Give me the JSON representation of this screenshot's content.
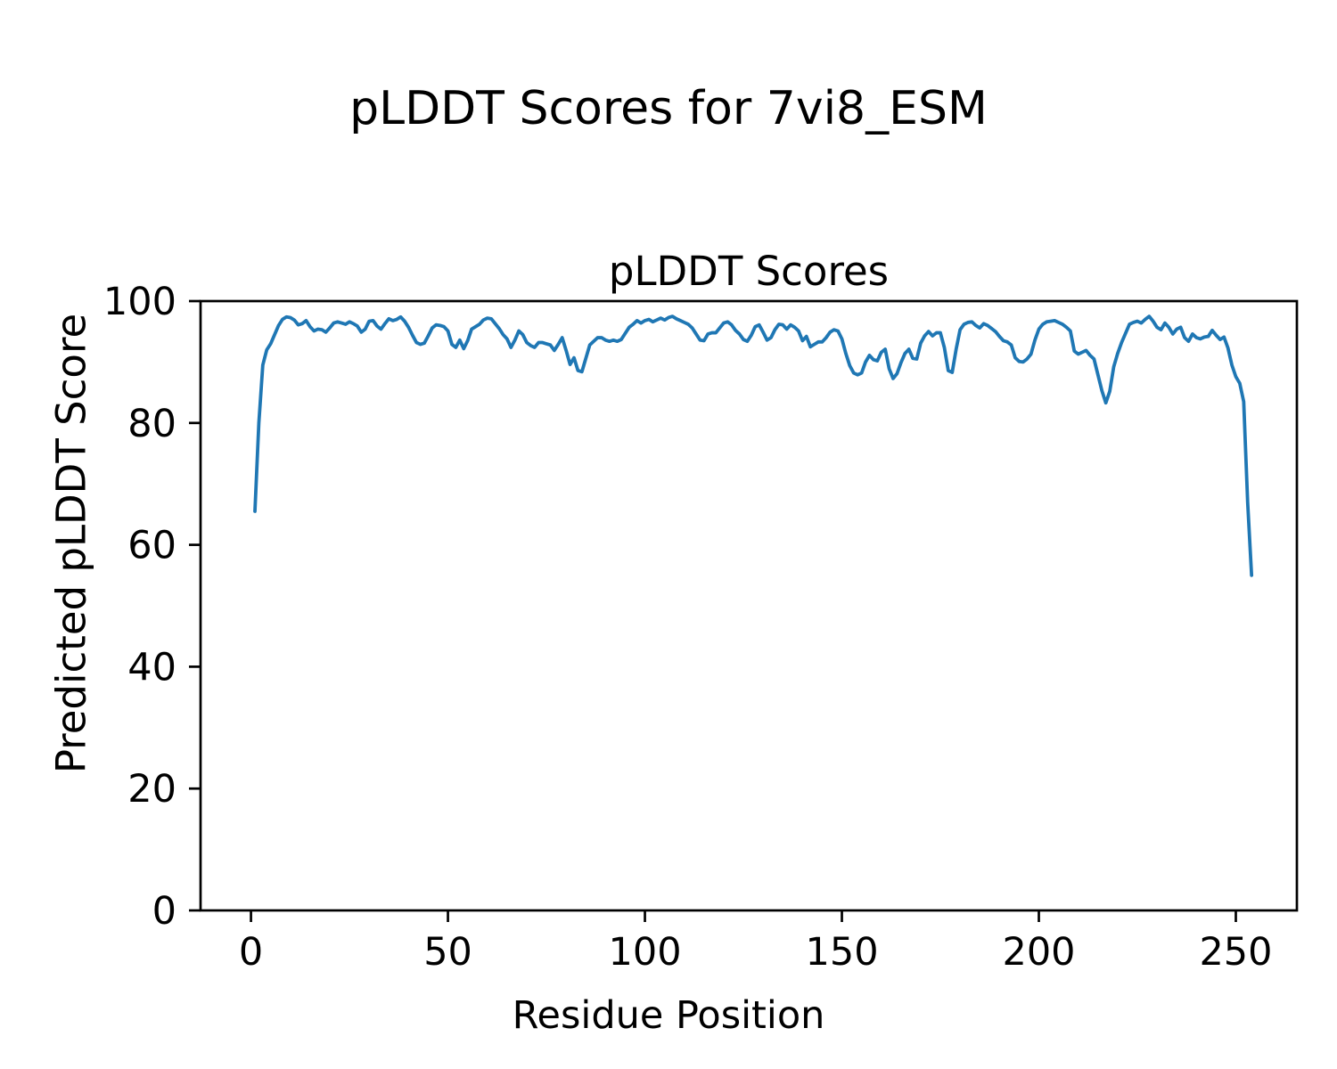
{
  "chart_data": {
    "type": "line",
    "suptitle": "pLDDT Scores for 7vi8_ESM",
    "title": "pLDDT Scores",
    "xlabel": "Residue Position",
    "ylabel": "Predicted pLDDT Score",
    "xlim": [
      -12.8,
      265.5
    ],
    "ylim": [
      0,
      100
    ],
    "xticks": [
      0,
      50,
      100,
      150,
      200,
      250
    ],
    "yticks": [
      0,
      20,
      40,
      60,
      80,
      100
    ],
    "grid": false,
    "legend": "none",
    "line_color": "#1f77b4",
    "series": [
      {
        "name": "pLDDT",
        "color": "#1f77b4",
        "x_start": 1,
        "x_step": 1,
        "values": [
          65.5,
          80.0,
          89.5,
          92.0,
          93.0,
          94.5,
          96.0,
          97.0,
          97.4,
          97.3,
          96.9,
          96.1,
          96.3,
          96.8,
          95.8,
          95.1,
          95.4,
          95.3,
          94.9,
          95.6,
          96.4,
          96.6,
          96.4,
          96.2,
          96.6,
          96.3,
          95.9,
          94.9,
          95.4,
          96.7,
          96.8,
          95.9,
          95.4,
          96.3,
          97.1,
          96.8,
          97.0,
          97.4,
          96.7,
          95.7,
          94.4,
          93.2,
          92.9,
          93.1,
          94.3,
          95.6,
          96.1,
          96.0,
          95.8,
          95.1,
          92.9,
          92.4,
          93.6,
          92.2,
          93.5,
          95.4,
          95.8,
          96.2,
          96.9,
          97.2,
          97.1,
          96.3,
          95.5,
          94.5,
          93.8,
          92.4,
          93.6,
          95.1,
          94.5,
          93.2,
          92.7,
          92.4,
          93.2,
          93.2,
          93.0,
          92.8,
          91.9,
          92.9,
          94.0,
          91.9,
          89.6,
          90.7,
          88.6,
          88.4,
          90.6,
          92.8,
          93.4,
          94.0,
          94.0,
          93.6,
          93.4,
          93.6,
          93.4,
          93.7,
          94.7,
          95.7,
          96.2,
          96.8,
          96.4,
          96.8,
          97.0,
          96.6,
          96.9,
          97.2,
          96.9,
          97.3,
          97.5,
          97.1,
          96.8,
          96.5,
          96.2,
          95.6,
          94.6,
          93.6,
          93.5,
          94.6,
          94.8,
          94.8,
          95.6,
          96.4,
          96.6,
          96.1,
          95.2,
          94.6,
          93.7,
          93.4,
          94.4,
          95.8,
          96.1,
          94.9,
          93.6,
          94.0,
          95.3,
          96.2,
          96.1,
          95.4,
          96.1,
          95.7,
          95.1,
          93.5,
          94.2,
          92.5,
          92.9,
          93.3,
          93.3,
          94.0,
          94.9,
          95.3,
          95.1,
          93.8,
          91.4,
          89.4,
          88.2,
          87.9,
          88.2,
          90.0,
          91.1,
          90.4,
          90.2,
          91.6,
          92.1,
          88.9,
          87.3,
          88.1,
          89.9,
          91.4,
          92.1,
          90.6,
          90.5,
          93.1,
          94.3,
          95.0,
          94.3,
          94.8,
          94.8,
          92.4,
          88.6,
          88.3,
          92.1,
          95.3,
          96.2,
          96.5,
          96.6,
          96.0,
          95.6,
          96.3,
          96.0,
          95.5,
          95.0,
          94.2,
          93.5,
          93.3,
          92.8,
          90.7,
          90.1,
          90.0,
          90.5,
          91.3,
          93.6,
          95.4,
          96.2,
          96.6,
          96.7,
          96.8,
          96.5,
          96.2,
          95.7,
          95.1,
          91.8,
          91.3,
          91.6,
          91.9,
          91.1,
          90.5,
          87.9,
          85.3,
          83.3,
          85.2,
          89.2,
          91.4,
          93.2,
          94.7,
          96.2,
          96.5,
          96.7,
          96.4,
          97.0,
          97.5,
          96.7,
          95.7,
          95.3,
          96.4,
          95.7,
          94.6,
          95.4,
          95.7,
          94.0,
          93.4,
          94.6,
          94.0,
          93.8,
          94.1,
          94.2,
          95.2,
          94.4,
          93.7,
          94.1,
          92.3,
          89.5,
          87.6,
          86.5,
          83.5,
          67.0,
          55.0
        ]
      }
    ]
  },
  "style": {
    "text_color": "#000000",
    "background": "#ffffff",
    "spine_color": "#000000"
  }
}
